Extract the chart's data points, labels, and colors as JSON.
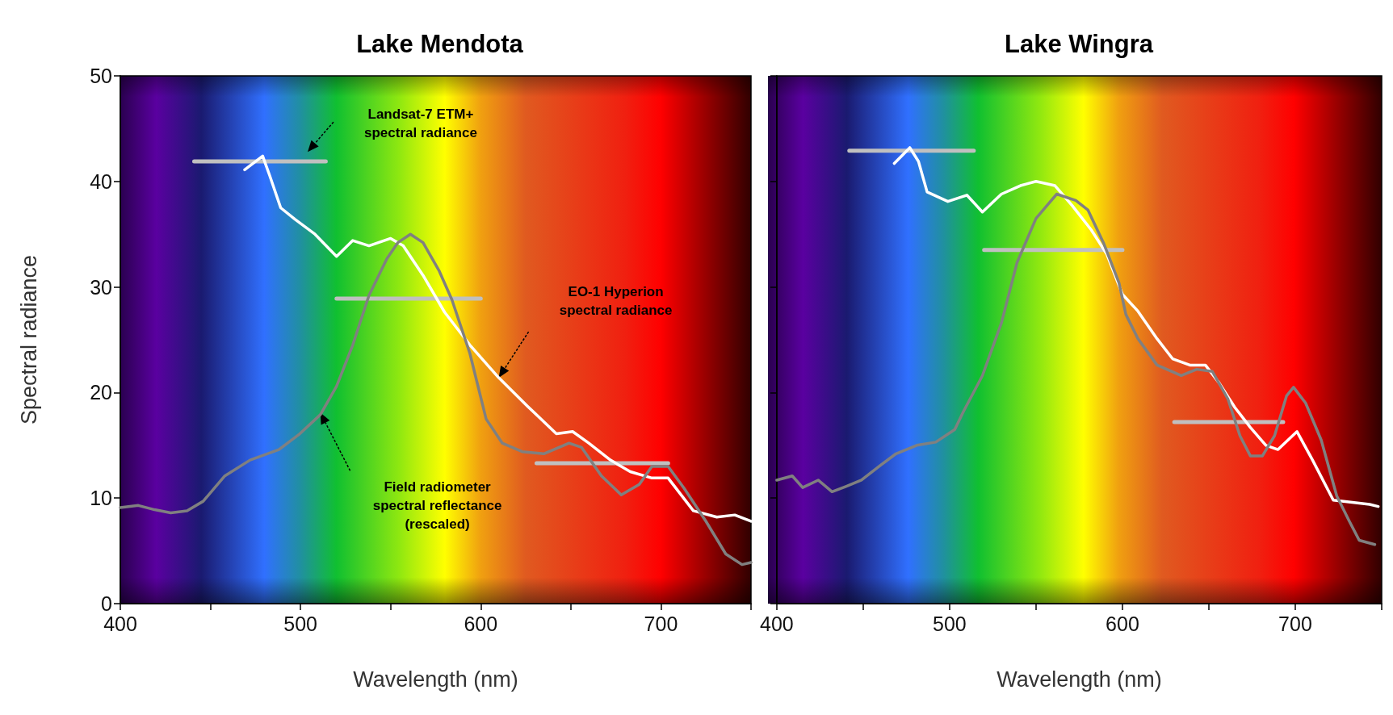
{
  "chart_data": [
    {
      "type": "line",
      "title": "Lake Mendota",
      "xlabel": "Wavelength (nm)",
      "ylabel": "Spectral radiance",
      "xlim": [
        400,
        750
      ],
      "ylim": [
        0,
        50
      ],
      "xticks": [
        400,
        {
          "value": 450,
          "label": null
        },
        500,
        {
          "value": 550,
          "label": null
        },
        600,
        {
          "value": 650,
          "label": null
        },
        700,
        {
          "value": 750,
          "label": null
        }
      ],
      "yticks": [
        0,
        10,
        20,
        30,
        40,
        50
      ],
      "grid": false,
      "marker": "none",
      "line_style": "solid",
      "series": [
        {
          "color": "#ffffff",
          "x": [
            469,
            479,
            483,
            489,
            497,
            508,
            520,
            529,
            538,
            550,
            557,
            568,
            580,
            594,
            610,
            626,
            642,
            651,
            660,
            672,
            683,
            695,
            704,
            718,
            731,
            741,
            750
          ],
          "values": [
            41.1,
            42.4,
            40.5,
            37.5,
            36.4,
            35,
            32.9,
            34.4,
            33.9,
            34.6,
            33.9,
            31.1,
            27.6,
            24.5,
            21.4,
            18.7,
            16.1,
            16.3,
            15.2,
            13.6,
            12.5,
            11.9,
            11.9,
            8.8,
            8.2,
            8.4,
            7.8
          ]
        },
        {
          "color": "#808080",
          "x": [
            400,
            410,
            419,
            428,
            437,
            446,
            458,
            472,
            488,
            499,
            511,
            520,
            529,
            538,
            548,
            554,
            561,
            568,
            577,
            584,
            594,
            603,
            612,
            623,
            635,
            649,
            656,
            667,
            678,
            688,
            695,
            704,
            713,
            725,
            736,
            745,
            750
          ],
          "values": [
            9.1,
            9.3,
            8.9,
            8.6,
            8.8,
            9.7,
            12.1,
            13.6,
            14.6,
            16,
            17.9,
            20.6,
            24.5,
            29.2,
            32.7,
            34.2,
            35,
            34.2,
            31.5,
            28.8,
            23.7,
            17.5,
            15.2,
            14.4,
            14.2,
            15.2,
            14.8,
            12.1,
            10.3,
            11.3,
            13,
            13,
            10.9,
            7.8,
            4.7,
            3.7,
            3.9
          ]
        },
        {
          "color": "#c0c0c0",
          "x": [
            441,
            514
          ],
          "values": [
            41.9,
            41.9
          ]
        },
        {
          "color": "#c0c0c0",
          "x": [
            520,
            600
          ],
          "values": [
            28.9,
            28.9
          ]
        },
        {
          "color": "#c0c0c0",
          "x": [
            631,
            704
          ],
          "values": [
            13.3,
            13.3
          ]
        }
      ],
      "annotations": [
        "Landsat-7 ETM+\nspectral radiance",
        "EO-1 Hyperion\nspectral radiance",
        "Field radiometer\nspectral reflectance\n(rescaled)"
      ]
    },
    {
      "type": "line",
      "title": "Lake Wingra",
      "xlabel": "Wavelength (nm)",
      "xlim": [
        400,
        750
      ],
      "ylim": [
        0,
        50
      ],
      "xticks": [
        400,
        {
          "value": 450,
          "label": null
        },
        500,
        {
          "value": 550,
          "label": null
        },
        600,
        {
          "value": 650,
          "label": null
        },
        700,
        {
          "value": 750,
          "label": null
        }
      ],
      "yticks": [
        0,
        10,
        20,
        30,
        40,
        50
      ],
      "tick_labels": "x",
      "grid": false,
      "marker": "none",
      "line_style": "solid",
      "series": [
        {
          "color": "#ffffff",
          "x": [
            468,
            477,
            482,
            487,
            499,
            510,
            519,
            530,
            541,
            550,
            561,
            571,
            582,
            591,
            600,
            609,
            620,
            629,
            639,
            648,
            656,
            665,
            674,
            683,
            690,
            701,
            710,
            722,
            733,
            743,
            748
          ],
          "values": [
            41.7,
            43.2,
            41.9,
            39,
            38.1,
            38.7,
            37.1,
            38.8,
            39.6,
            40,
            39.6,
            37.7,
            35.4,
            33.1,
            29.3,
            27.7,
            25.1,
            23.2,
            22.6,
            22.6,
            20.9,
            18.6,
            16.7,
            15,
            14.6,
            16.3,
            13.6,
            9.8,
            9.6,
            9.4,
            9.2
          ]
        },
        {
          "color": "#808080",
          "x": [
            400,
            409,
            415,
            424,
            432,
            440,
            449,
            460,
            469,
            481,
            492,
            503,
            508,
            519,
            530,
            539,
            550,
            562,
            573,
            580,
            589,
            598,
            602,
            609,
            620,
            634,
            643,
            652,
            661,
            668,
            674,
            681,
            688,
            695,
            699,
            706,
            715,
            724,
            731,
            737,
            746
          ],
          "values": [
            11.7,
            12.1,
            11,
            11.7,
            10.6,
            11.1,
            11.7,
            13.1,
            14.2,
            15,
            15.3,
            16.5,
            18.2,
            21.6,
            26.6,
            32.3,
            36.5,
            38.8,
            38.2,
            37.3,
            34.2,
            30.4,
            27.4,
            25.1,
            22.6,
            21.6,
            22.2,
            22,
            19.4,
            15.9,
            14,
            14,
            15.9,
            19.7,
            20.5,
            19,
            15.5,
            10.2,
            7.9,
            6,
            5.6
          ]
        },
        {
          "color": "#c0c0c0",
          "x": [
            442,
            514
          ],
          "values": [
            42.9,
            42.9
          ]
        },
        {
          "color": "#c0c0c0",
          "x": [
            520,
            600
          ],
          "values": [
            33.5,
            33.5
          ]
        },
        {
          "color": "#c0c0c0",
          "x": [
            630,
            693
          ],
          "values": [
            17.2,
            17.2
          ]
        }
      ]
    }
  ]
}
